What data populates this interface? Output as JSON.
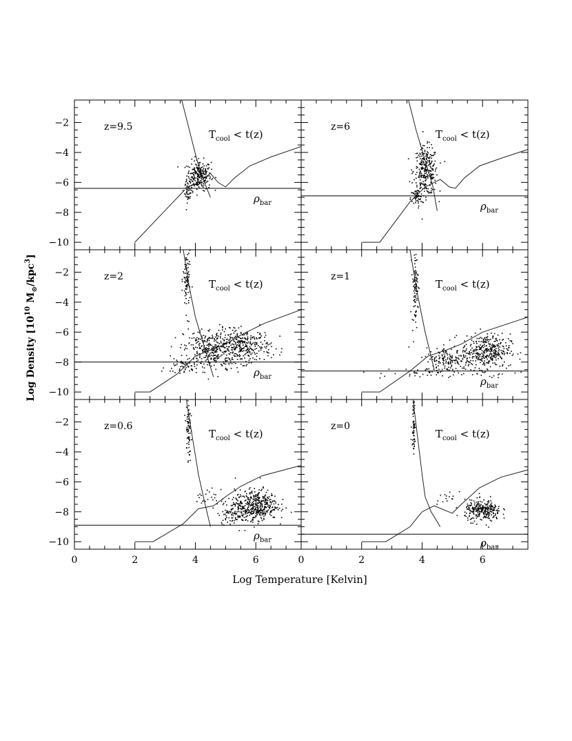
{
  "chart_data": {
    "type": "scatter",
    "layout": "3 rows x 2 columns, shared axes",
    "xlabel": "Log Temperature [Kelvin]",
    "ylabel_parts": [
      "Log Density  [10",
      "10",
      " M",
      "⊙",
      "/kpc",
      "3",
      "]"
    ],
    "xlim": [
      0,
      7.5
    ],
    "ylim": [
      -10.5,
      -0.5
    ],
    "xticks": [
      0,
      2,
      4,
      6
    ],
    "yticks": [
      -10,
      -8,
      -6,
      -4,
      -2
    ],
    "cooling_label": {
      "main": "T",
      "sub": "cool",
      "rest": " < t(z)"
    },
    "rho_label": {
      "main": "ρ",
      "sub": "bar"
    },
    "panels": [
      {
        "label": "z=9.5",
        "rho_bar": -6.4,
        "floor_curve": [
          [
            2,
            -10
          ],
          [
            3.65,
            -6.5
          ]
        ],
        "cooling_curve": [
          [
            3.65,
            -6.4
          ],
          [
            4.1,
            -6.0
          ],
          [
            4.5,
            -5.4
          ],
          [
            4.75,
            -6.0
          ],
          [
            5.0,
            -6.3
          ],
          [
            5.3,
            -5.7
          ],
          [
            5.8,
            -4.9
          ],
          [
            6.5,
            -4.3
          ],
          [
            7.5,
            -3.6
          ]
        ],
        "tc_curve": [
          [
            3.55,
            -0.5
          ],
          [
            3.8,
            -2.5
          ],
          [
            4.05,
            -4.5
          ],
          [
            4.3,
            -6.0
          ],
          [
            4.5,
            -7.0
          ]
        ],
        "clouds": [
          {
            "cx": 4.1,
            "cy": -5.5,
            "sx": 0.2,
            "sy": 0.5,
            "n": 240
          },
          {
            "cx": 3.75,
            "cy": -6.6,
            "sx": 0.06,
            "sy": 0.35,
            "n": 40
          }
        ]
      },
      {
        "label": "z=6",
        "rho_bar": -6.9,
        "floor_curve": [
          [
            2,
            -10
          ],
          [
            2.6,
            -10
          ],
          [
            3.6,
            -7.3
          ]
        ],
        "cooling_curve": [
          [
            3.6,
            -7.3
          ],
          [
            4.1,
            -6.3
          ],
          [
            4.6,
            -5.8
          ],
          [
            4.9,
            -6.3
          ],
          [
            5.1,
            -6.4
          ],
          [
            5.4,
            -5.7
          ],
          [
            5.9,
            -4.9
          ],
          [
            6.6,
            -4.4
          ],
          [
            7.5,
            -3.8
          ]
        ],
        "tc_curve": [
          [
            3.55,
            -0.5
          ],
          [
            3.8,
            -2.5
          ],
          [
            4.05,
            -4.2
          ],
          [
            4.35,
            -6.2
          ],
          [
            4.5,
            -7.9
          ]
        ],
        "clouds": [
          {
            "cx": 4.1,
            "cy": -5.2,
            "sx": 0.2,
            "sy": 0.8,
            "n": 280
          },
          {
            "cx": 3.8,
            "cy": -7.0,
            "sx": 0.1,
            "sy": 0.3,
            "n": 50
          }
        ]
      },
      {
        "label": "z=2",
        "rho_bar": -8.0,
        "floor_curve": [
          [
            2,
            -10
          ],
          [
            2.5,
            -10
          ],
          [
            3.4,
            -8.8
          ],
          [
            4.0,
            -7.6
          ]
        ],
        "cooling_curve": [
          [
            4.0,
            -7.6
          ],
          [
            4.5,
            -7.2
          ],
          [
            5.0,
            -6.8
          ],
          [
            5.5,
            -6.2
          ],
          [
            6.3,
            -5.4
          ],
          [
            7.5,
            -4.5
          ]
        ],
        "tc_curve": [
          [
            3.6,
            -0.5
          ],
          [
            3.8,
            -3.0
          ],
          [
            4.0,
            -5.0
          ],
          [
            4.3,
            -7.0
          ],
          [
            4.6,
            -9.0
          ]
        ],
        "clouds": [
          {
            "cx": 4.5,
            "cy": -7.1,
            "sx": 0.45,
            "sy": 0.7,
            "n": 330
          },
          {
            "cx": 5.6,
            "cy": -6.9,
            "sx": 0.45,
            "sy": 0.55,
            "n": 300
          },
          {
            "cx": 3.7,
            "cy": -2.5,
            "sx": 0.06,
            "sy": 1.1,
            "n": 90
          },
          {
            "cx": 3.6,
            "cy": -8.3,
            "sx": 0.3,
            "sy": 0.3,
            "n": 50
          }
        ]
      },
      {
        "label": "z=1",
        "rho_bar": -8.6,
        "floor_curve": [
          [
            2,
            -10
          ],
          [
            2.6,
            -10
          ],
          [
            3.6,
            -8.6
          ],
          [
            4.2,
            -7.6
          ]
        ],
        "cooling_curve": [
          [
            4.2,
            -7.6
          ],
          [
            4.8,
            -7.2
          ],
          [
            5.3,
            -6.8
          ],
          [
            6.0,
            -6.0
          ],
          [
            7.5,
            -5.0
          ]
        ],
        "tc_curve": [
          [
            3.6,
            -0.5
          ],
          [
            3.85,
            -3.5
          ],
          [
            4.1,
            -6.0
          ],
          [
            4.4,
            -8.5
          ]
        ],
        "clouds": [
          {
            "cx": 6.1,
            "cy": -7.2,
            "sx": 0.4,
            "sy": 0.55,
            "n": 360
          },
          {
            "cx": 4.9,
            "cy": -7.8,
            "sx": 0.4,
            "sy": 0.4,
            "n": 160
          },
          {
            "cx": 3.75,
            "cy": -3.0,
            "sx": 0.05,
            "sy": 1.2,
            "n": 90
          },
          {
            "cx": 5.0,
            "cy": -8.7,
            "sx": 1.2,
            "sy": 0.2,
            "n": 60
          }
        ]
      },
      {
        "label": "z=0.6",
        "rho_bar": -8.9,
        "floor_curve": [
          [
            2,
            -10
          ],
          [
            2.6,
            -10
          ],
          [
            3.6,
            -8.8
          ],
          [
            4.1,
            -7.8
          ]
        ],
        "cooling_curve": [
          [
            4.1,
            -7.8
          ],
          [
            4.6,
            -7.6
          ],
          [
            5.0,
            -7.0
          ],
          [
            5.5,
            -6.3
          ],
          [
            6.2,
            -5.6
          ],
          [
            7.5,
            -4.9
          ]
        ],
        "tc_curve": [
          [
            3.7,
            -0.5
          ],
          [
            3.9,
            -3.0
          ],
          [
            4.1,
            -5.5
          ],
          [
            4.3,
            -7.3
          ],
          [
            4.5,
            -9.0
          ]
        ],
        "clouds": [
          {
            "cx": 6.0,
            "cy": -7.5,
            "sx": 0.35,
            "sy": 0.5,
            "n": 380
          },
          {
            "cx": 5.4,
            "cy": -8.0,
            "sx": 0.35,
            "sy": 0.4,
            "n": 140
          },
          {
            "cx": 3.75,
            "cy": -2.5,
            "sx": 0.04,
            "sy": 1.1,
            "n": 70
          },
          {
            "cx": 4.6,
            "cy": -7.0,
            "sx": 0.3,
            "sy": 0.3,
            "n": 25
          }
        ]
      },
      {
        "label": "z=0",
        "rho_bar": -9.5,
        "floor_curve": [
          [
            2,
            -10
          ],
          [
            2.8,
            -10
          ],
          [
            3.6,
            -9.0
          ],
          [
            4.0,
            -8.0
          ]
        ],
        "cooling_curve": [
          [
            4.0,
            -8.0
          ],
          [
            4.4,
            -7.6
          ],
          [
            5.0,
            -8.1
          ],
          [
            5.3,
            -7.5
          ],
          [
            5.9,
            -6.4
          ],
          [
            6.6,
            -5.7
          ],
          [
            7.5,
            -5.2
          ]
        ],
        "tc_curve": [
          [
            3.7,
            -0.5
          ],
          [
            3.85,
            -3.0
          ],
          [
            4.0,
            -5.5
          ],
          [
            4.1,
            -7.0
          ],
          [
            4.3,
            -8.0
          ],
          [
            4.6,
            -9.0
          ]
        ],
        "clouds": [
          {
            "cx": 6.0,
            "cy": -7.9,
            "sx": 0.3,
            "sy": 0.35,
            "n": 280
          },
          {
            "cx": 3.7,
            "cy": -2.0,
            "sx": 0.03,
            "sy": 1.0,
            "n": 60
          },
          {
            "cx": 4.9,
            "cy": -7.0,
            "sx": 0.3,
            "sy": 0.3,
            "n": 15
          }
        ]
      }
    ]
  }
}
